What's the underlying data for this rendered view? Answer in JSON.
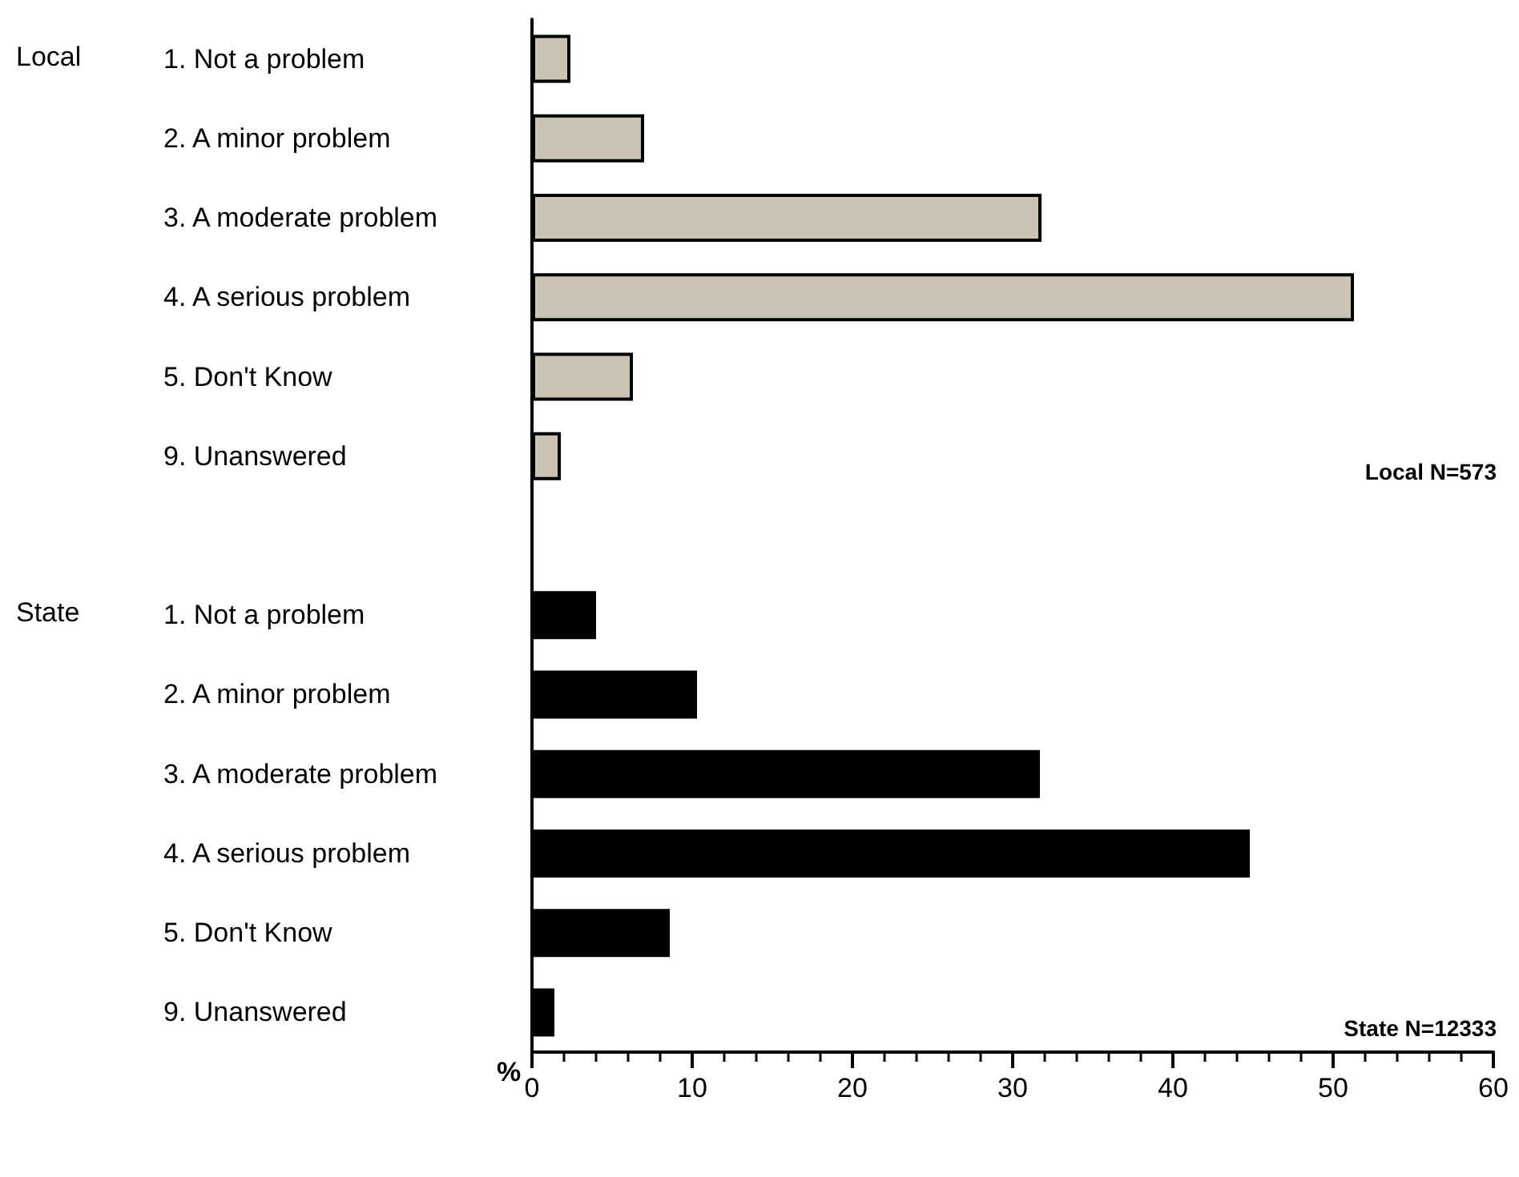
{
  "chart_data": {
    "type": "bar",
    "orientation": "horizontal",
    "xlabel": "%",
    "categories": [
      "1. Not a problem",
      "2. A minor problem",
      "3. A moderate problem",
      "4. A serious problem",
      "5. Don't Know",
      "9. Unanswered",
      null,
      "1. Not a problem",
      "2. A minor problem",
      "3. A moderate problem",
      "4. A serious problem",
      "5. Don't Know",
      "9. Unanswered"
    ],
    "series": [
      {
        "color": "#cbc3b3",
        "values": [
          2.4,
          7.0,
          31.8,
          51.3,
          6.3,
          1.8,
          null,
          null,
          null,
          null,
          null,
          null,
          null
        ]
      },
      {
        "color": "#000000",
        "values": [
          null,
          null,
          null,
          null,
          null,
          null,
          null,
          4.0,
          10.3,
          31.7,
          44.8,
          8.6,
          1.4
        ]
      }
    ],
    "xlim": [
      0,
      60
    ],
    "xticks": [
      0,
      10,
      20,
      30,
      40,
      50,
      60
    ],
    "grid": false,
    "annotations": [
      "Local",
      "State",
      "Local N=573",
      "State N=12333"
    ]
  }
}
